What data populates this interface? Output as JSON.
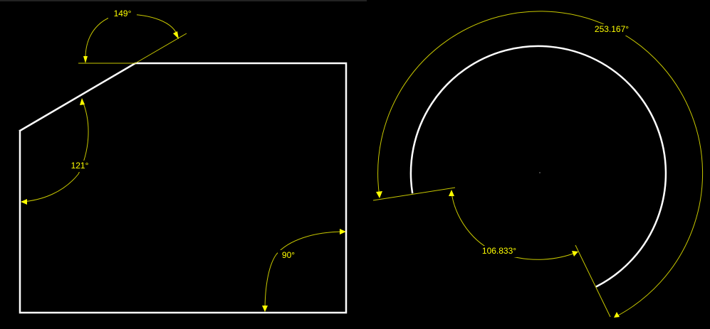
{
  "drawing": {
    "polygon_angles": {
      "top": "149°",
      "left": "121°",
      "bottom_right": "90°"
    },
    "arc_angles": {
      "outer": "253.167°",
      "inner": "106.833°"
    }
  }
}
